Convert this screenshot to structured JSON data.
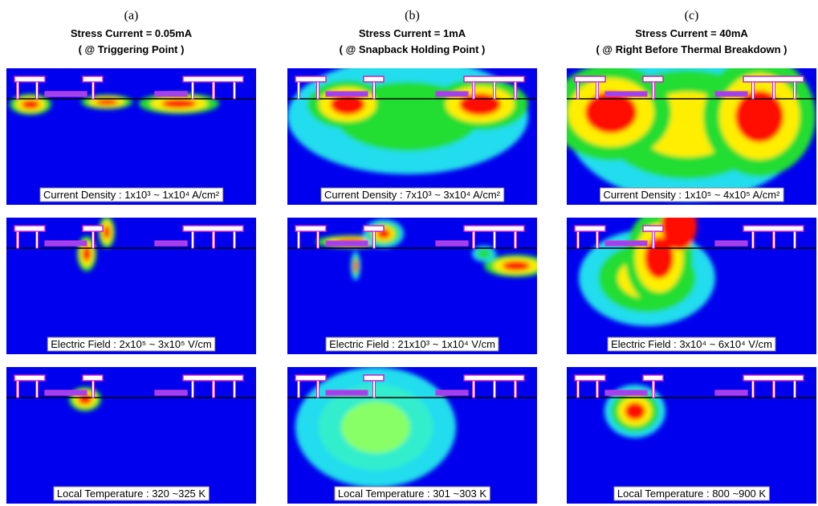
{
  "columns": [
    {
      "label": "(a)",
      "title": "Stress Current = 0.05mA",
      "subtitle": "( @ Triggering Point )",
      "panels": [
        "Current Density : 1x10³ ~ 1x10⁴ A/cm²",
        "Electric Field : 2x10⁵ ~ 3x10⁵ V/cm",
        "Local Temperature : 320 ~325 K"
      ]
    },
    {
      "label": "(b)",
      "title": "Stress Current = 1mA",
      "subtitle": "( @ Snapback Holding Point )",
      "panels": [
        "Current Density : 7x10³ ~ 3x10⁴ A/cm²",
        "Electric Field : 21x10³ ~ 1x10⁴ V/cm",
        "Local Temperature : 301 ~303 K"
      ]
    },
    {
      "label": "(c)",
      "title": "Stress Current = 40mA",
      "subtitle": "( @ Right Before Thermal Breakdown )",
      "panels": [
        "Current Density : 1x10⁵ ~ 4x10⁵ A/cm²",
        "Electric Field : 3x10⁴ ~ 6x10⁴ V/cm",
        "Local Temperature : 800 ~900 K"
      ]
    }
  ]
}
